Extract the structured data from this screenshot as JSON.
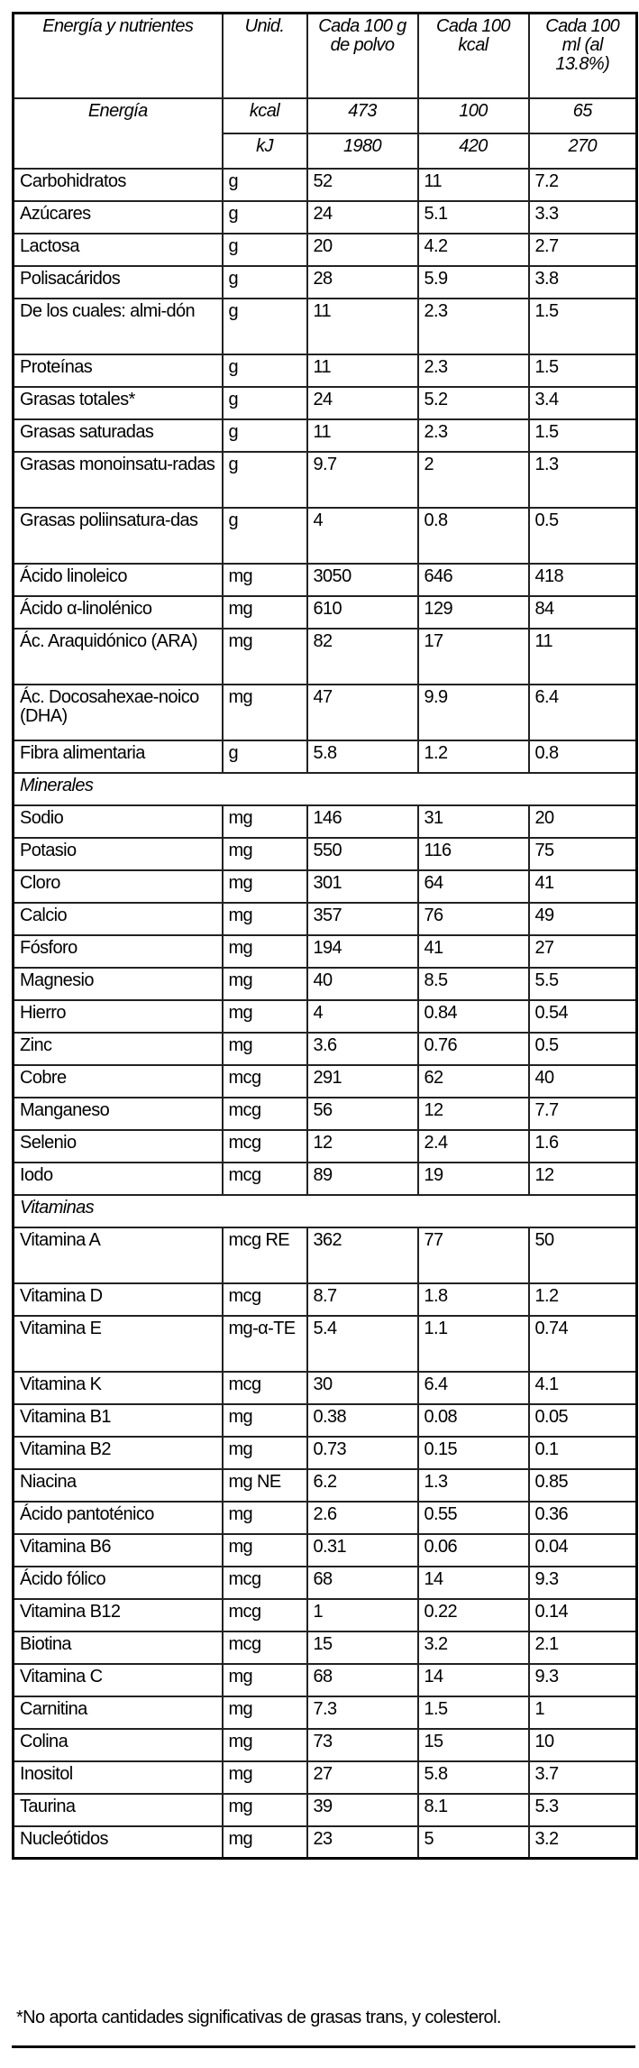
{
  "header": {
    "nutrient": "Energía y nutrientes",
    "unit": "Unid.",
    "per_100g": "Cada 100 g de polvo",
    "per_100kcal": "Cada 100 kcal",
    "per_100ml": "Cada 100 ml (al 13.8%)"
  },
  "energy": {
    "label": "Energía",
    "rows": [
      {
        "unit": "kcal",
        "v1": "473",
        "v2": "100",
        "v3": "65"
      },
      {
        "unit": "kJ",
        "v1": "1980",
        "v2": "420",
        "v3": "270"
      }
    ]
  },
  "rows": [
    {
      "name": "Carbohidratos",
      "unit": "g",
      "v1": "52",
      "v2": "11",
      "v3": "7.2"
    },
    {
      "name": "Azúcares",
      "unit": "g",
      "v1": "24",
      "v2": "5.1",
      "v3": "3.3"
    },
    {
      "name": "Lactosa",
      "unit": "g",
      "v1": "20",
      "v2": "4.2",
      "v3": "2.7"
    },
    {
      "name": "Polisacáridos",
      "unit": "g",
      "v1": "28",
      "v2": "5.9",
      "v3": "3.8"
    },
    {
      "name": "De los cuales: almi-dón",
      "unit": "g",
      "v1": "11",
      "v2": "2.3",
      "v3": "1.5",
      "double": true
    },
    {
      "name": "Proteínas",
      "unit": "g",
      "v1": "11",
      "v2": "2.3",
      "v3": "1.5"
    },
    {
      "name": "Grasas totales*",
      "unit": "g",
      "v1": "24",
      "v2": "5.2",
      "v3": "3.4"
    },
    {
      "name": "Grasas saturadas",
      "unit": "g",
      "v1": "11",
      "v2": "2.3",
      "v3": "1.5"
    },
    {
      "name": "Grasas monoinsatu-radas",
      "unit": "g",
      "v1": "9.7",
      "v2": "2",
      "v3": "1.3",
      "double": true
    },
    {
      "name": "Grasas poliinsatura-das",
      "unit": "g",
      "v1": "4",
      "v2": "0.8",
      "v3": "0.5",
      "double": true
    },
    {
      "name": "Ácido linoleico",
      "unit": "mg",
      "v1": "3050",
      "v2": "646",
      "v3": "418"
    },
    {
      "name": "Ácido α-linolénico",
      "unit": "mg",
      "v1": "610",
      "v2": "129",
      "v3": "84"
    },
    {
      "name": "Ác. Araquidónico (ARA)",
      "unit": "mg",
      "v1": "82",
      "v2": "17",
      "v3": "11",
      "double": true
    },
    {
      "name": "Ác. Docosahexae-noico (DHA)",
      "unit": "mg",
      "v1": "47",
      "v2": "9.9",
      "v3": "6.4",
      "double": true
    },
    {
      "name": "Fibra alimentaria",
      "unit": "g",
      "v1": "5.8",
      "v2": "1.2",
      "v3": "0.8"
    },
    {
      "section": "Minerales"
    },
    {
      "name": "Sodio",
      "unit": "mg",
      "v1": "146",
      "v2": "31",
      "v3": "20"
    },
    {
      "name": "Potasio",
      "unit": "mg",
      "v1": "550",
      "v2": "116",
      "v3": "75"
    },
    {
      "name": "Cloro",
      "unit": "mg",
      "v1": "301",
      "v2": "64",
      "v3": "41"
    },
    {
      "name": "Calcio",
      "unit": "mg",
      "v1": "357",
      "v2": "76",
      "v3": "49"
    },
    {
      "name": "Fósforo",
      "unit": "mg",
      "v1": "194",
      "v2": "41",
      "v3": "27"
    },
    {
      "name": "Magnesio",
      "unit": "mg",
      "v1": "40",
      "v2": "8.5",
      "v3": "5.5"
    },
    {
      "name": "Hierro",
      "unit": "mg",
      "v1": "4",
      "v2": "0.84",
      "v3": "0.54"
    },
    {
      "name": "Zinc",
      "unit": "mg",
      "v1": "3.6",
      "v2": "0.76",
      "v3": "0.5"
    },
    {
      "name": "Cobre",
      "unit": "mcg",
      "v1": "291",
      "v2": "62",
      "v3": "40"
    },
    {
      "name": "Manganeso",
      "unit": "mcg",
      "v1": "56",
      "v2": "12",
      "v3": "7.7"
    },
    {
      "name": "Selenio",
      "unit": "mcg",
      "v1": "12",
      "v2": "2.4",
      "v3": "1.6"
    },
    {
      "name": "Iodo",
      "unit": "mcg",
      "v1": "89",
      "v2": "19",
      "v3": "12"
    },
    {
      "section": "Vitaminas"
    },
    {
      "name": "Vitamina A",
      "unit": "mcg RE",
      "v1": "362",
      "v2": "77",
      "v3": "50",
      "double": true
    },
    {
      "name": "Vitamina D",
      "unit": "mcg",
      "v1": "8.7",
      "v2": "1.8",
      "v3": "1.2"
    },
    {
      "name": "Vitamina E",
      "unit": "mg-α-TE",
      "v1": "5.4",
      "v2": "1.1",
      "v3": "0.74",
      "double": true
    },
    {
      "name": "Vitamina K",
      "unit": "mcg",
      "v1": "30",
      "v2": "6.4",
      "v3": "4.1"
    },
    {
      "name": "Vitamina B1",
      "unit": "mg",
      "v1": "0.38",
      "v2": "0.08",
      "v3": "0.05"
    },
    {
      "name": "Vitamina B2",
      "unit": "mg",
      "v1": "0.73",
      "v2": "0.15",
      "v3": "0.1"
    },
    {
      "name": "Niacina",
      "unit": "mg NE",
      "v1": "6.2",
      "v2": "1.3",
      "v3": "0.85"
    },
    {
      "name": "Ácido pantoténico",
      "unit": "mg",
      "v1": "2.6",
      "v2": "0.55",
      "v3": "0.36"
    },
    {
      "name": "Vitamina B6",
      "unit": "mg",
      "v1": "0.31",
      "v2": "0.06",
      "v3": "0.04"
    },
    {
      "name": "Ácido fólico",
      "unit": "mcg",
      "v1": "68",
      "v2": "14",
      "v3": "9.3"
    },
    {
      "name": "Vitamina B12",
      "unit": "mcg",
      "v1": "1",
      "v2": "0.22",
      "v3": "0.14"
    },
    {
      "name": "Biotina",
      "unit": "mcg",
      "v1": "15",
      "v2": "3.2",
      "v3": "2.1"
    },
    {
      "name": "Vitamina C",
      "unit": "mg",
      "v1": "68",
      "v2": "14",
      "v3": "9.3"
    },
    {
      "name": "Carnitina",
      "unit": "mg",
      "v1": "7.3",
      "v2": "1.5",
      "v3": "1"
    },
    {
      "name": "Colina",
      "unit": "mg",
      "v1": "73",
      "v2": "15",
      "v3": "10"
    },
    {
      "name": "Inositol",
      "unit": "mg",
      "v1": "27",
      "v2": "5.8",
      "v3": "3.7"
    },
    {
      "name": "Taurina",
      "unit": "mg",
      "v1": "39",
      "v2": "8.1",
      "v3": "5.3"
    },
    {
      "name": "Nucleótidos",
      "unit": "mg",
      "v1": "23",
      "v2": "5",
      "v3": "3.2"
    }
  ],
  "footnote": "*No aporta cantidades significativas de grasas trans, y colesterol."
}
